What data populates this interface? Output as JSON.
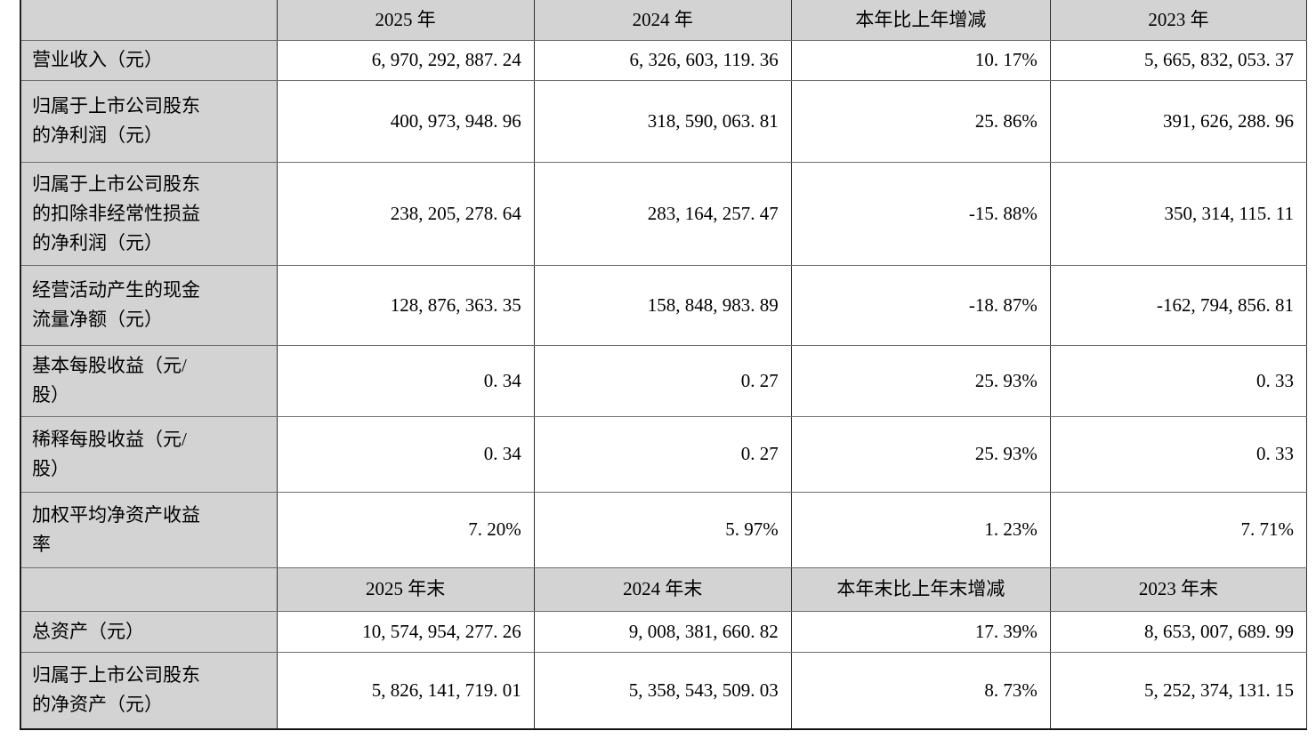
{
  "colors": {
    "header_fill": "#d3d3d3",
    "grid_line_vertical": "#2e2e2e",
    "grid_line_horizontal": "#6e6e6e",
    "text": "#000000",
    "background": "#ffffff"
  },
  "table": {
    "description": "financial-summary-table",
    "rows": [
      {
        "type": "header",
        "cells": [
          "",
          "2025 年",
          "2024 年",
          "本年比上年增减",
          "2023 年"
        ]
      },
      {
        "type": "data",
        "label": "营业收入（元）",
        "values": [
          "6,970,292,887.24",
          "6,326,603,119.36",
          "10.17%",
          "5,665,832,053.37"
        ]
      },
      {
        "type": "data",
        "label": "归属于上市公司股东\n的净利润（元）",
        "values": [
          "400,973,948.96",
          "318,590,063.81",
          "25.86%",
          "391,626,288.96"
        ]
      },
      {
        "type": "data",
        "label": "归属于上市公司股东\n的扣除非经常性损益\n的净利润（元）",
        "values": [
          "238,205,278.64",
          "283,164,257.47",
          "-15.88%",
          "350,314,115.11"
        ]
      },
      {
        "type": "data",
        "label": "经营活动产生的现金\n流量净额（元）",
        "values": [
          "128,876,363.35",
          "158,848,983.89",
          "-18.87%",
          "-162,794,856.81"
        ]
      },
      {
        "type": "data",
        "label": "基本每股收益（元/\n股）",
        "values": [
          "0.34",
          "0.27",
          "25.93%",
          "0.33"
        ]
      },
      {
        "type": "data",
        "label": "稀释每股收益（元/\n股）",
        "values": [
          "0.34",
          "0.27",
          "25.93%",
          "0.33"
        ]
      },
      {
        "type": "data",
        "label": "加权平均净资产收益\n率",
        "values": [
          "7.20%",
          "5.97%",
          "1.23%",
          "7.71%"
        ]
      },
      {
        "type": "header",
        "cells": [
          "",
          "2025 年末",
          "2024 年末",
          "本年末比上年末增减",
          "2023 年末"
        ]
      },
      {
        "type": "data",
        "label": "总资产（元）",
        "values": [
          "10,574,954,277.26",
          "9,008,381,660.82",
          "17.39%",
          "8,653,007,689.99"
        ]
      },
      {
        "type": "data",
        "label": "归属于上市公司股东\n的净资产（元）",
        "values": [
          "5,826,141,719.01",
          "5,358,543,509.03",
          "8.73%",
          "5,252,374,131.15"
        ]
      }
    ]
  }
}
